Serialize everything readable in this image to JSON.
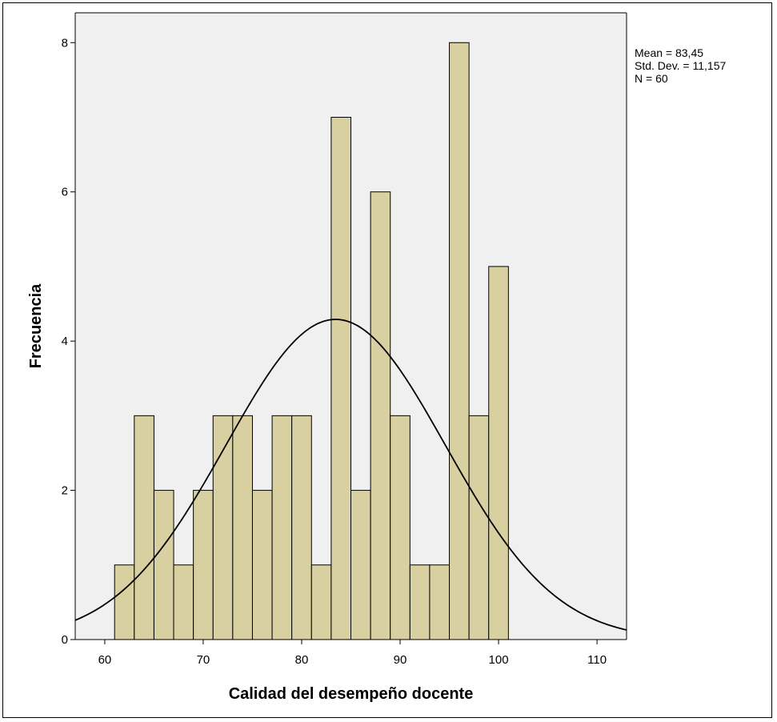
{
  "chart_data": {
    "type": "bar",
    "subtype": "histogram",
    "title": "",
    "xlabel": "Calidad del desempeño docente",
    "ylabel": "Frecuencia",
    "xlim": [
      57,
      113
    ],
    "ylim": [
      0,
      8.4
    ],
    "xticks": [
      60,
      70,
      80,
      90,
      100,
      110
    ],
    "yticks": [
      0,
      2,
      4,
      6,
      8
    ],
    "bin_width": 2,
    "bins": [
      {
        "x0": 61,
        "x1": 63,
        "count": 1
      },
      {
        "x0": 63,
        "x1": 65,
        "count": 3
      },
      {
        "x0": 65,
        "x1": 67,
        "count": 2
      },
      {
        "x0": 67,
        "x1": 69,
        "count": 1
      },
      {
        "x0": 69,
        "x1": 71,
        "count": 2
      },
      {
        "x0": 71,
        "x1": 73,
        "count": 3
      },
      {
        "x0": 73,
        "x1": 75,
        "count": 3
      },
      {
        "x0": 75,
        "x1": 77,
        "count": 2
      },
      {
        "x0": 77,
        "x1": 79,
        "count": 3
      },
      {
        "x0": 79,
        "x1": 81,
        "count": 3
      },
      {
        "x0": 81,
        "x1": 83,
        "count": 1
      },
      {
        "x0": 83,
        "x1": 85,
        "count": 7
      },
      {
        "x0": 85,
        "x1": 87,
        "count": 2
      },
      {
        "x0": 87,
        "x1": 89,
        "count": 6
      },
      {
        "x0": 89,
        "x1": 91,
        "count": 3
      },
      {
        "x0": 91,
        "x1": 93,
        "count": 1
      },
      {
        "x0": 93,
        "x1": 95,
        "count": 1
      },
      {
        "x0": 95,
        "x1": 97,
        "count": 8
      },
      {
        "x0": 97,
        "x1": 99,
        "count": 3
      },
      {
        "x0": 99,
        "x1": 101,
        "count": 5
      }
    ],
    "normal_curve": {
      "mean": 83.45,
      "std": 11.157,
      "n": 60
    },
    "stats_text": [
      "Mean = 83,45",
      "Std. Dev. = 11,157",
      "N = 60"
    ],
    "colors": {
      "bar_fill": "#d8d0a0",
      "plot_bg": "#f0f0f0",
      "bar_stroke": "#000000"
    },
    "grid": false,
    "legend": "none"
  }
}
